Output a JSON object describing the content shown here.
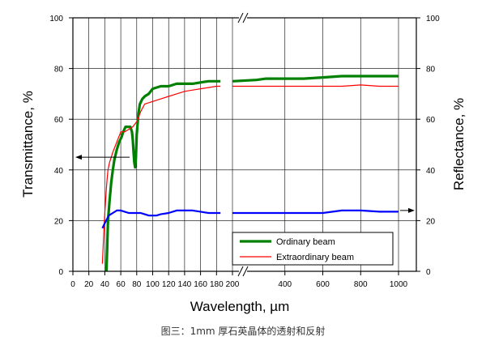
{
  "caption": "图三：1mm 厚石英晶体的透射和反射",
  "chart_data": {
    "type": "line",
    "xlabel": "Wavelength, µm",
    "ylabel_left": "Transmittance, %",
    "ylabel_right": "Reflectance, %",
    "x_axis_break": true,
    "x_segments": [
      {
        "min": 0,
        "max": 200,
        "ticks": [
          0,
          20,
          40,
          60,
          80,
          100,
          120,
          140,
          160,
          180
        ]
      },
      {
        "min": 200,
        "max": 1000,
        "ticks": [
          200,
          400,
          600,
          800,
          1000
        ]
      }
    ],
    "x_tick_labels": [
      "0",
      "20",
      "40",
      "60",
      "80",
      "100",
      "120",
      "140",
      "160",
      "180",
      "200",
      "400",
      "600",
      "800",
      "1000"
    ],
    "ylim_left": [
      0,
      100
    ],
    "ylim_right": [
      0,
      100
    ],
    "y_ticks_left": [
      "0",
      "20",
      "40",
      "60",
      "80",
      "100"
    ],
    "y_ticks_right": [
      "0",
      "20",
      "40",
      "60",
      "80",
      "100"
    ],
    "grid": true,
    "legend_position": "bottom-right",
    "series": [
      {
        "name": "Ordinary beam",
        "axis": "left",
        "color": "#008000",
        "style": "thick",
        "x": [
          42,
          43,
          44,
          46,
          48,
          50,
          52,
          55,
          58,
          61,
          63,
          66,
          69,
          72,
          74,
          75,
          76,
          77,
          78,
          79,
          80,
          82,
          84,
          87,
          90,
          95,
          100,
          110,
          120,
          130,
          140,
          150,
          160,
          170,
          180,
          185,
          200,
          250,
          300,
          400,
          500,
          600,
          700,
          800,
          900,
          1000
        ],
        "y": [
          0,
          10,
          20,
          28,
          35,
          40,
          44,
          48,
          51,
          53,
          55,
          57,
          57,
          57,
          55,
          52,
          47,
          43,
          41,
          45,
          54,
          62,
          66,
          68,
          69,
          70,
          72,
          73,
          73,
          74,
          74,
          74,
          74.5,
          75,
          75,
          75,
          75,
          75.5,
          76,
          76,
          76,
          76.5,
          77,
          77,
          77,
          77
        ]
      },
      {
        "name": "Extraordinary beam",
        "axis": "left",
        "color": "#ff0000",
        "style": "thin",
        "x": [
          37,
          38,
          39,
          40,
          41,
          42,
          43,
          44,
          46,
          48,
          50,
          55,
          60,
          65,
          70,
          75,
          80,
          85,
          90,
          100,
          110,
          120,
          130,
          140,
          150,
          160,
          170,
          180,
          185,
          200,
          300,
          400,
          500,
          600,
          700,
          800,
          900,
          1000
        ],
        "y": [
          3,
          10,
          17,
          23,
          28,
          33,
          37,
          40,
          43,
          45,
          47,
          51,
          55,
          55,
          56,
          57,
          59,
          63,
          66,
          67,
          68,
          69,
          70,
          71,
          71.5,
          72,
          72.5,
          73,
          73,
          73,
          73,
          73,
          73,
          73,
          73,
          73.5,
          73,
          73
        ]
      },
      {
        "name": "Reflectance",
        "axis": "right",
        "color": "#0000ff",
        "style": "medium",
        "x": [
          37,
          40,
          45,
          50,
          55,
          60,
          65,
          70,
          75,
          80,
          85,
          90,
          95,
          100,
          105,
          110,
          120,
          130,
          140,
          150,
          160,
          170,
          180,
          185,
          200,
          250,
          300,
          400,
          500,
          600,
          700,
          800,
          900,
          1000
        ],
        "y": [
          17,
          19,
          22,
          23,
          24,
          24,
          23.5,
          23,
          23,
          23,
          23,
          22.5,
          22,
          22,
          22,
          22.5,
          23,
          24,
          24,
          24,
          23.5,
          23,
          23,
          23,
          23,
          23,
          23,
          23,
          23,
          23,
          24,
          24,
          23.5,
          23.5
        ]
      }
    ],
    "annotations": [
      {
        "type": "arrow",
        "direction": "left",
        "target_axis": "left",
        "value": 45
      },
      {
        "type": "arrow",
        "direction": "right",
        "target_axis": "right",
        "value": 24
      }
    ]
  }
}
